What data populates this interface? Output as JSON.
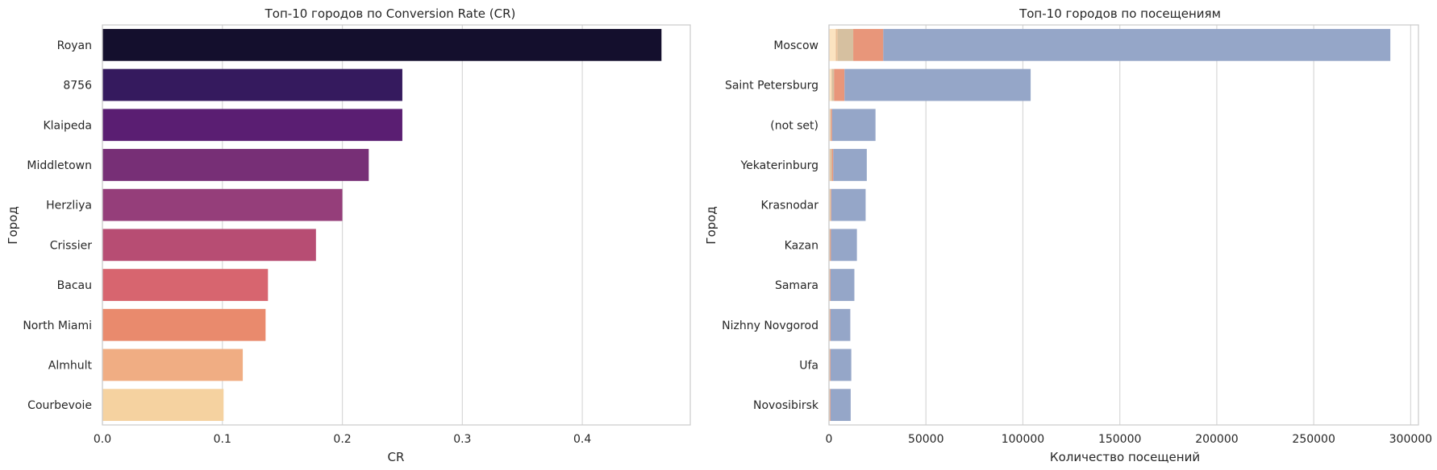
{
  "chart_data": [
    {
      "type": "bar",
      "orientation": "horizontal",
      "title": "Топ-10 городов по Conversion Rate (CR)",
      "xlabel": "CR",
      "ylabel": "Город",
      "xlim": [
        0,
        0.49
      ],
      "xticks": [
        0,
        0.1,
        0.2,
        0.3,
        0.4
      ],
      "xtick_labels": [
        "0.0",
        "0.1",
        "0.2",
        "0.3",
        "0.4"
      ],
      "grid": true,
      "categories": [
        "Royan",
        "8756",
        "Klaipeda",
        "Middletown",
        "Herzliya",
        "Crissier",
        "Bacau",
        "North Miami",
        "Almhult",
        "Courbevoie"
      ],
      "values": [
        0.466,
        0.25,
        0.25,
        0.222,
        0.2,
        0.178,
        0.138,
        0.136,
        0.117,
        0.101
      ],
      "colors": [
        "#140f2d",
        "#351a5e",
        "#5a1e72",
        "#772f76",
        "#953e7a",
        "#b74d73",
        "#d7656f",
        "#e98a6d",
        "#f0ad83",
        "#f5d2a0"
      ]
    },
    {
      "type": "bar",
      "orientation": "horizontal",
      "stacked": true,
      "title": "Топ-10 городов по посещениям",
      "xlabel": "Количество посещений",
      "ylabel": "Город",
      "xlim": [
        0,
        304000
      ],
      "xticks": [
        0,
        50000,
        100000,
        150000,
        200000,
        250000,
        300000
      ],
      "xtick_labels": [
        "0",
        "50000",
        "100000",
        "150000",
        "200000",
        "250000",
        "300000"
      ],
      "grid": true,
      "categories": [
        "Moscow",
        "Saint Petersburg",
        "(not set)",
        "Yekaterinburg",
        "Krasnodar",
        "Kazan",
        "Samara",
        "Nizhny Novgorod",
        "Ufa",
        "Novosibirsk"
      ],
      "series": [
        {
          "color": "#fbe3c0",
          "values": [
            3500,
            1200,
            500,
            400,
            300,
            200,
            200,
            200,
            200,
            200
          ]
        },
        {
          "color": "#e9c19a",
          "values": [
            1000,
            400,
            200,
            300,
            200,
            100,
            100,
            100,
            100,
            100
          ]
        },
        {
          "color": "#d6c0a0",
          "values": [
            8000,
            1000,
            300,
            800,
            400,
            300,
            200,
            200,
            200,
            200
          ]
        },
        {
          "color": "#e8967a",
          "values": [
            15500,
            5400,
            600,
            700,
            300,
            400,
            300,
            300,
            300,
            300
          ]
        },
        {
          "color": "#95a6c8",
          "values": [
            261500,
            96000,
            22400,
            17300,
            17700,
            13400,
            12300,
            10200,
            10700,
            10400
          ]
        }
      ]
    }
  ]
}
